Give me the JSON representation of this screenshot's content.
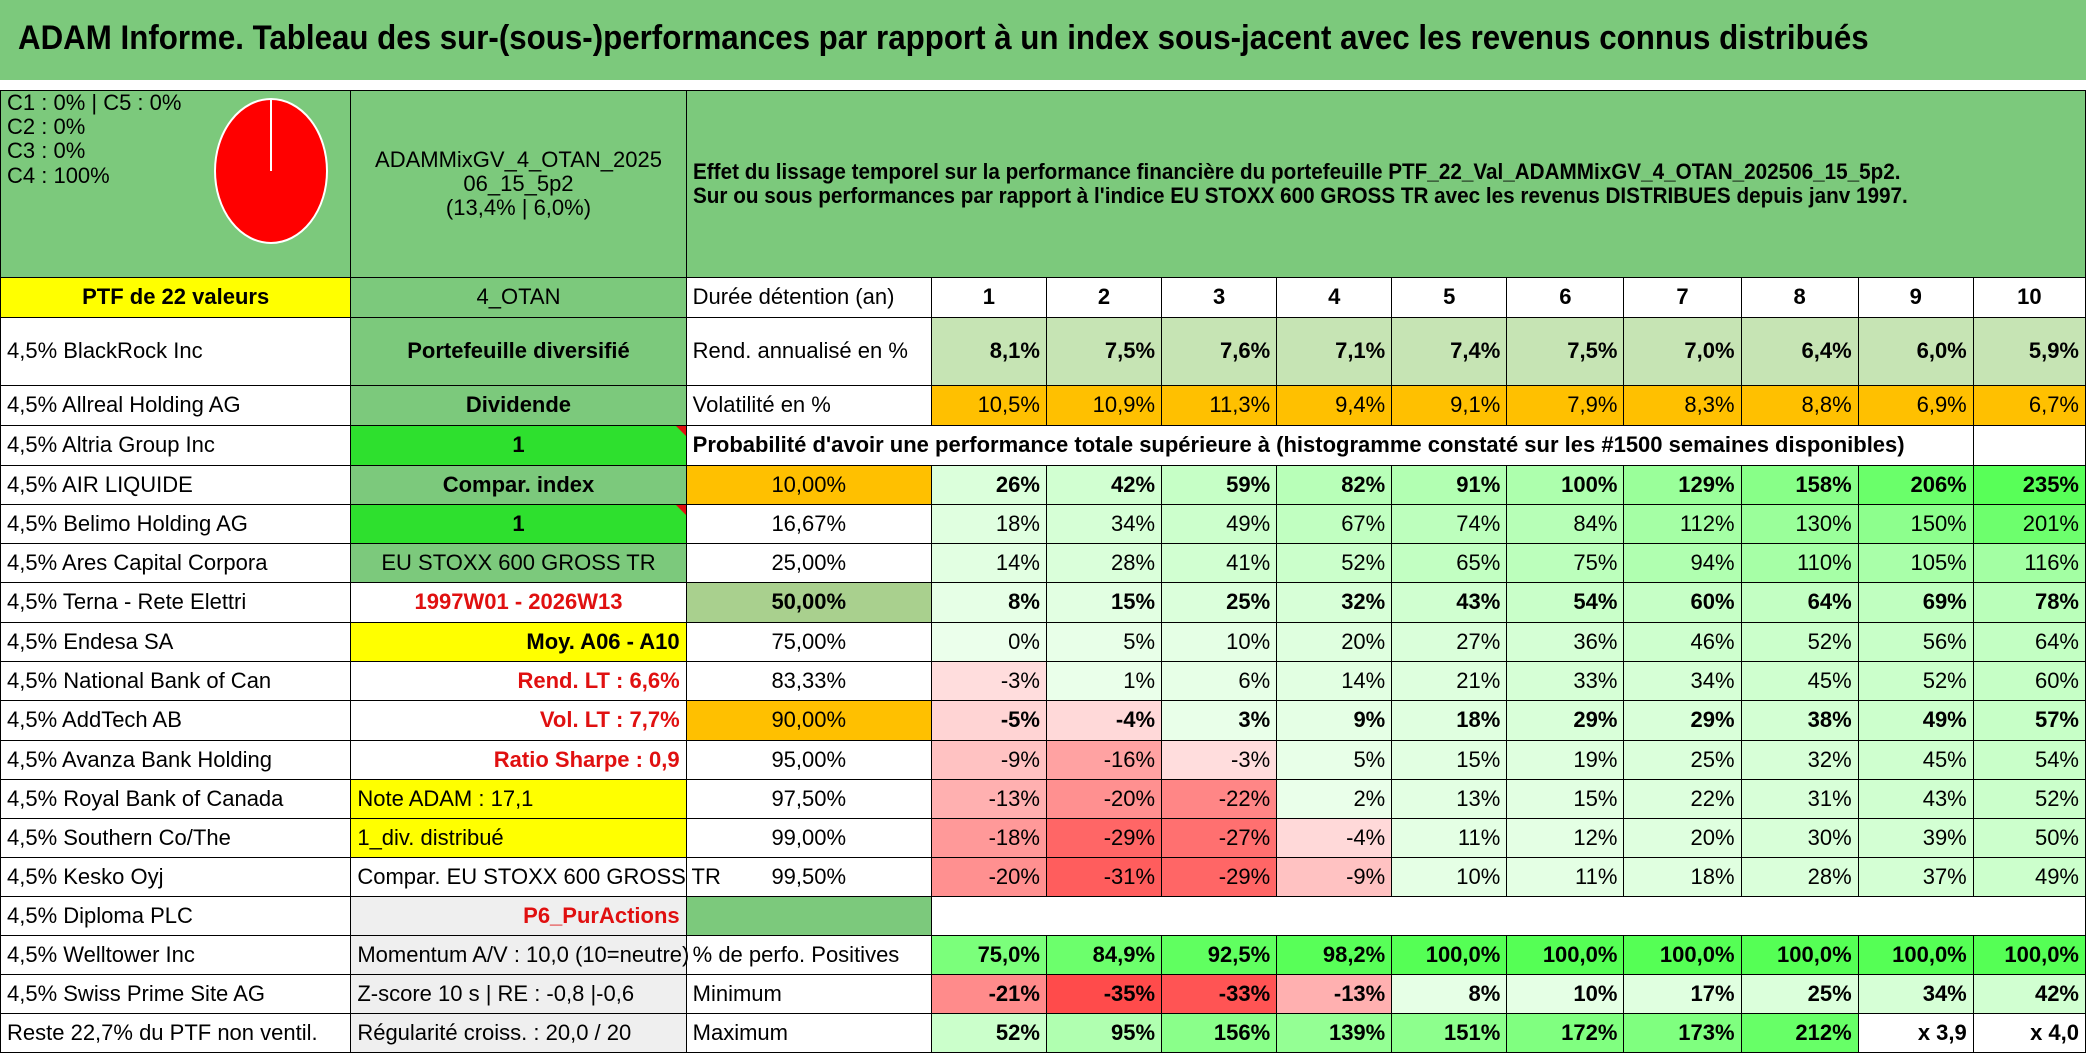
{
  "title": "ADAM Informe. Tableau des sur-(sous-)performances par rapport à un index sous-jacent avec les revenus connus distribués",
  "legend": [
    "C1 : 0% | C5 : 0%",
    "C2 : 0%",
    "C3 : 0%",
    "C4 : 100%"
  ],
  "pie": {
    "label": "C4",
    "value": 100,
    "color": "#ff0000"
  },
  "portfolio_code_line1": "ADAMMixGV_4_OTAN_2025",
  "portfolio_code_line2": "06_15_5p2",
  "portfolio_code_line3": "(13,4% | 6,0%)",
  "description_line1": "Effet du lissage temporel sur la performance financière du portefeuille PTF_22_Val_ADAMMixGV_4_OTAN_202506_15_5p2.",
  "description_line2": "Sur ou sous performances par rapport à l'indice EU STOXX 600 GROSS TR avec les revenus DISTRIBUES depuis janv 1997.",
  "ptf_label": "PTF de 22 valeurs",
  "ptf_code": "4_OTAN",
  "holding_header": "Durée détention (an)",
  "years": [
    "1",
    "2",
    "3",
    "4",
    "5",
    "6",
    "7",
    "8",
    "9",
    "10"
  ],
  "holdings": [
    "4,5% BlackRock Inc",
    "4,5% Allreal Holding AG",
    "4,5% Altria Group Inc",
    "4,5% AIR LIQUIDE",
    "4,5% Belimo Holding AG",
    "4,5% Ares Capital Corpora",
    "4,5% Terna - Rete Elettri",
    "4,5% Endesa SA",
    "4,5% National Bank of Can",
    "4,5% AddTech AB",
    "4,5% Avanza Bank Holding",
    "4,5% Royal Bank of Canada",
    "4,5% Southern Co/The",
    "4,5% Kesko Oyj",
    "4,5% Diploma PLC",
    "4,5% Welltower Inc",
    "4,5% Swiss Prime Site AG",
    "Reste 22,7% du PTF non ventil."
  ],
  "info": {
    "diversified": "Portefeuille diversifié",
    "dividend": "Dividende",
    "one_a": "1",
    "compar_index": "Compar. index",
    "one_b": "1",
    "index_name": "EU STOXX 600 GROSS TR",
    "period": "1997W01 - 2026W13",
    "moy": "Moy. A06 - A10",
    "rend_lt": "Rend. LT : 6,6%",
    "vol_lt": "Vol. LT : 7,7%",
    "sharpe": "Ratio Sharpe : 0,9",
    "note": "Note ADAM : 17,1",
    "div": "1_div. distribué",
    "compar": "Compar. EU STOXX 600 GROSS TR",
    "p6": "P6_PurActions",
    "momentum": "Momentum A/V : 10,0 (10=neutre)",
    "zscore": "Z-score 10 s | RE : -0,8 |-0,6",
    "regularite": "Régularité croiss. : 20,0 / 20"
  },
  "rend": {
    "label": "Rend. annualisé en %",
    "values": [
      "8,1%",
      "7,5%",
      "7,6%",
      "7,1%",
      "7,4%",
      "7,5%",
      "7,0%",
      "6,4%",
      "6,0%",
      "5,9%"
    ]
  },
  "vol": {
    "label": "Volatilité en %",
    "values": [
      "10,5%",
      "10,9%",
      "11,3%",
      "9,4%",
      "9,1%",
      "7,9%",
      "8,3%",
      "8,8%",
      "6,9%",
      "6,7%"
    ]
  },
  "prob_title": "Probabilité d'avoir une performance totale supérieure à (histogramme constaté sur les #1500 semaines disponibles)",
  "prob_rows": [
    {
      "p": "10,00%",
      "v": [
        "26%",
        "42%",
        "59%",
        "82%",
        "91%",
        "100%",
        "129%",
        "158%",
        "206%",
        "235%"
      ]
    },
    {
      "p": "16,67%",
      "v": [
        "18%",
        "34%",
        "49%",
        "67%",
        "74%",
        "84%",
        "112%",
        "130%",
        "150%",
        "201%"
      ]
    },
    {
      "p": "25,00%",
      "v": [
        "14%",
        "28%",
        "41%",
        "52%",
        "65%",
        "75%",
        "94%",
        "110%",
        "105%",
        "116%"
      ]
    },
    {
      "p": "50,00%",
      "v": [
        "8%",
        "15%",
        "25%",
        "32%",
        "43%",
        "54%",
        "60%",
        "64%",
        "69%",
        "78%"
      ]
    },
    {
      "p": "75,00%",
      "v": [
        "0%",
        "5%",
        "10%",
        "20%",
        "27%",
        "36%",
        "46%",
        "52%",
        "56%",
        "64%"
      ]
    },
    {
      "p": "83,33%",
      "v": [
        "-3%",
        "1%",
        "6%",
        "14%",
        "21%",
        "33%",
        "34%",
        "45%",
        "52%",
        "60%"
      ]
    },
    {
      "p": "90,00%",
      "v": [
        "-5%",
        "-4%",
        "3%",
        "9%",
        "18%",
        "29%",
        "29%",
        "38%",
        "49%",
        "57%"
      ]
    },
    {
      "p": "95,00%",
      "v": [
        "-9%",
        "-16%",
        "-3%",
        "5%",
        "15%",
        "19%",
        "25%",
        "32%",
        "45%",
        "54%"
      ]
    },
    {
      "p": "97,50%",
      "v": [
        "-13%",
        "-20%",
        "-22%",
        "2%",
        "13%",
        "15%",
        "22%",
        "31%",
        "43%",
        "52%"
      ]
    },
    {
      "p": "99,00%",
      "v": [
        "-18%",
        "-29%",
        "-27%",
        "-4%",
        "11%",
        "12%",
        "20%",
        "30%",
        "39%",
        "50%"
      ]
    },
    {
      "p": "99,50%",
      "v": [
        "-20%",
        "-31%",
        "-29%",
        "-9%",
        "10%",
        "11%",
        "18%",
        "28%",
        "37%",
        "49%"
      ]
    }
  ],
  "pos": {
    "label": "% de perfo. Positives",
    "values": [
      "75,0%",
      "84,9%",
      "92,5%",
      "98,2%",
      "100,0%",
      "100,0%",
      "100,0%",
      "100,0%",
      "100,0%",
      "100,0%"
    ]
  },
  "min": {
    "label": "Minimum",
    "values": [
      "-21%",
      "-35%",
      "-33%",
      "-13%",
      "8%",
      "10%",
      "17%",
      "25%",
      "34%",
      "42%"
    ]
  },
  "max": {
    "label": "Maximum",
    "values": [
      "52%",
      "95%",
      "156%",
      "139%",
      "151%",
      "172%",
      "173%",
      "212%",
      "x 3,9",
      "x 4,0"
    ]
  }
}
